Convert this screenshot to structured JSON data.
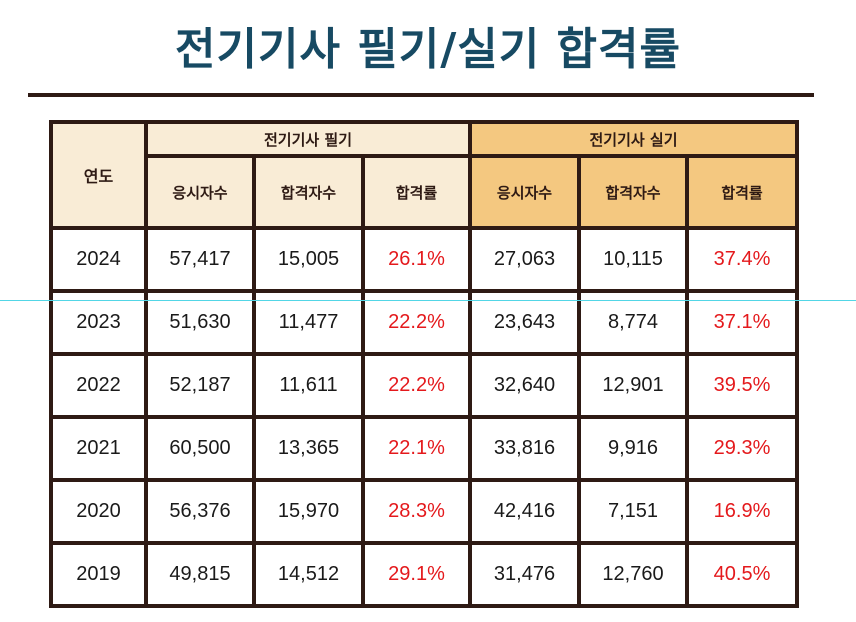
{
  "title": "전기기사 필기/실기 합격률",
  "table": {
    "year_header": "연도",
    "groups": [
      "전기기사 필기",
      "전기기사 실기"
    ],
    "subheaders": [
      "응시자수",
      "합격자수",
      "합격률",
      "응시자수",
      "합격자수",
      "합격률"
    ],
    "rows": [
      [
        "2024",
        "57,417",
        "15,005",
        "26.1%",
        "27,063",
        "10,115",
        "37.4%"
      ],
      [
        "2023",
        "51,630",
        "11,477",
        "22.2%",
        "23,643",
        "8,774",
        "37.1%"
      ],
      [
        "2022",
        "52,187",
        "11,611",
        "22.2%",
        "32,640",
        "12,901",
        "39.5%"
      ],
      [
        "2021",
        "60,500",
        "13,365",
        "22.1%",
        "33,816",
        "9,916",
        "29.3%"
      ],
      [
        "2020",
        "56,376",
        "15,970",
        "28.3%",
        "42,416",
        "7,151",
        "16.9%"
      ],
      [
        "2019",
        "49,815",
        "14,512",
        "29.1%",
        "31,476",
        "12,760",
        "40.5%"
      ]
    ]
  },
  "colors": {
    "title": "#174a63",
    "border": "#2e1a14",
    "written_header_bg": "#f9ecd6",
    "practical_header_bg": "#f4c880",
    "rate_text": "#e4191c"
  }
}
